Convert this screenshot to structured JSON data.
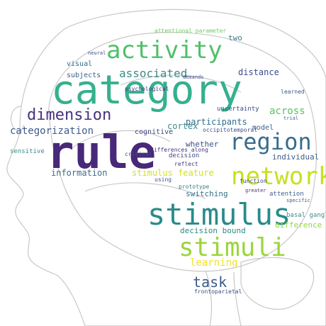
{
  "word_cloud": {
    "silhouette": "head-profile-with-brain",
    "palette": [
      "#440154",
      "#3b528b",
      "#21918c",
      "#5ec962",
      "#fde725"
    ],
    "words": [
      {
        "text": "category",
        "color": "#35b08e"
      },
      {
        "text": "rule",
        "color": "#482878"
      },
      {
        "text": "stimulus",
        "color": "#2a8a8a"
      },
      {
        "text": "activity",
        "color": "#4fc06a"
      },
      {
        "text": "stimuli",
        "color": "#9bd53c"
      },
      {
        "text": "network",
        "color": "#c7e020"
      },
      {
        "text": "region",
        "color": "#3a6c8e"
      },
      {
        "text": "dimension",
        "color": "#46337e"
      },
      {
        "text": "associated",
        "color": "#3d8a8a"
      },
      {
        "text": "categorization",
        "color": "#3e5a8c"
      },
      {
        "text": "task",
        "color": "#3b5a8c"
      },
      {
        "text": "learning",
        "color": "#f2e22a"
      },
      {
        "text": "stimulus feature",
        "color": "#d7e219"
      },
      {
        "text": "information",
        "color": "#3e6a8c"
      },
      {
        "text": "decision bound",
        "color": "#2c8a86"
      },
      {
        "text": "distance",
        "color": "#3a4c8a"
      },
      {
        "text": "cortex",
        "color": "#3a8a88"
      },
      {
        "text": "participants",
        "color": "#2d6e8e"
      },
      {
        "text": "subjects",
        "color": "#3a5d8c"
      },
      {
        "text": "model",
        "color": "#34608d"
      },
      {
        "text": "across",
        "color": "#5cbf5f"
      },
      {
        "text": "switching",
        "color": "#36708e"
      },
      {
        "text": "whether",
        "color": "#3c4d89"
      },
      {
        "text": "visual",
        "color": "#2f6d8e"
      },
      {
        "text": "cognitive",
        "color": "#41447e"
      },
      {
        "text": "two",
        "color": "#3b7b8c"
      },
      {
        "text": "difference",
        "color": "#8fd744"
      },
      {
        "text": "individual",
        "color": "#3f5c8c"
      },
      {
        "text": "decision",
        "color": "#3c4e89"
      },
      {
        "text": "uncertainty",
        "color": "#3e4a89"
      },
      {
        "text": "attentional parameter",
        "color": "#6ccd5a"
      },
      {
        "text": "psychological",
        "color": "#45337e"
      },
      {
        "text": "occipitotemporal",
        "color": "#3a538b"
      },
      {
        "text": "function",
        "color": "#3f4c8a"
      },
      {
        "text": "frontoparietal",
        "color": "#3d4e8a"
      },
      {
        "text": "sensitive",
        "color": "#3a8a86"
      },
      {
        "text": "learned",
        "color": "#3b5a8c"
      },
      {
        "text": "attention",
        "color": "#3b5d8c"
      },
      {
        "text": "reflect",
        "color": "#46337e"
      },
      {
        "text": "critical",
        "color": "#3b4e88"
      },
      {
        "text": "prototype",
        "color": "#3a7b8c"
      },
      {
        "text": "differences along",
        "color": "#45337e"
      },
      {
        "text": "greater",
        "color": "#44347e"
      },
      {
        "text": "demands",
        "color": "#3d4a89"
      },
      {
        "text": "neural",
        "color": "#3f4788"
      },
      {
        "text": "specific",
        "color": "#3c5a8c"
      },
      {
        "text": "trial",
        "color": "#3b6f8e"
      },
      {
        "text": "using",
        "color": "#3b5a8c"
      },
      {
        "text": "basal ganglia",
        "color": "#3d8c88"
      }
    ]
  }
}
